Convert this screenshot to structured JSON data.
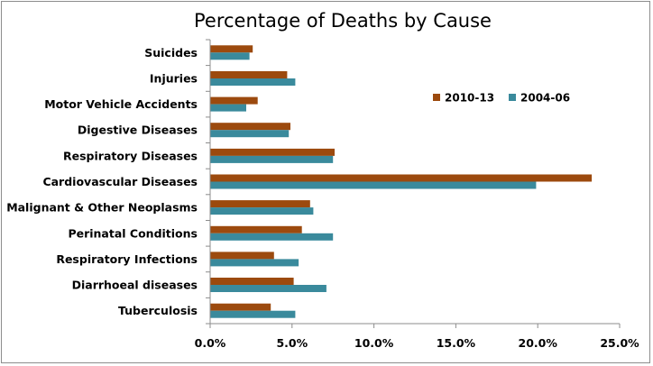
{
  "chart_data": {
    "type": "bar",
    "orientation": "horizontal",
    "title": "Percentage of Deaths by Cause",
    "xlabel": "",
    "ylabel": "",
    "xlim": [
      0,
      25
    ],
    "x_ticks": [
      "0.0%",
      "5.0%",
      "10.0%",
      "15.0%",
      "20.0%",
      "25.0%"
    ],
    "categories": [
      "Suicides",
      "Injuries",
      "Motor Vehicle Accidents",
      "Digestive Diseases",
      "Respiratory Diseases",
      "Cardiovascular Diseases",
      "Malignant & Other Neoplasms",
      "Perinatal Conditions",
      "Respiratory Infections",
      "Diarrhoeal diseases",
      "Tuberculosis"
    ],
    "series": [
      {
        "name": "2010-13",
        "color": "#9c4a0e",
        "values": [
          2.6,
          4.7,
          2.9,
          4.9,
          7.6,
          23.3,
          6.1,
          5.6,
          3.9,
          5.1,
          3.7
        ]
      },
      {
        "name": "2004-06",
        "color": "#3a8a9c",
        "values": [
          2.4,
          5.2,
          2.2,
          4.8,
          7.5,
          19.9,
          6.3,
          7.5,
          5.4,
          7.1,
          5.2
        ]
      }
    ],
    "legend": "inside-right",
    "grid": false
  }
}
